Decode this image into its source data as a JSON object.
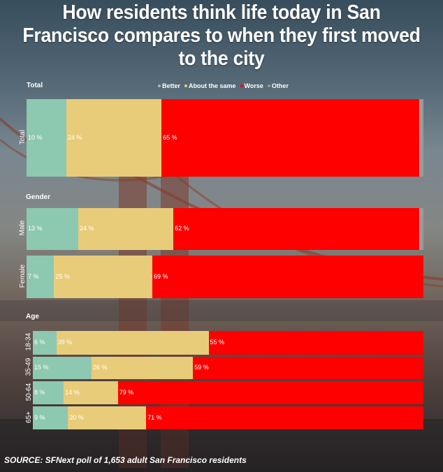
{
  "title": "How residents think life today in San Francisco compares to when they first moved to the city",
  "source": "SOURCE:  SFNext poll of 1,653 adult San Francisco residents",
  "legend": [
    {
      "label": "Better",
      "color": "#8dc8b1"
    },
    {
      "label": "About the same",
      "color": "#e9cc7a"
    },
    {
      "label": "Worse",
      "color": "#ff0000"
    },
    {
      "label": "Other",
      "color": "#9a9a9a"
    }
  ],
  "chart_data": {
    "type": "bar",
    "orientation": "horizontal",
    "stacked": true,
    "unit": "%",
    "series_names": [
      "Better",
      "About the same",
      "Worse",
      "Other"
    ],
    "groups": [
      {
        "label": "Total",
        "rows": [
          {
            "label": "Total",
            "values": [
              10,
              24,
              65,
              1
            ]
          }
        ]
      },
      {
        "label": "Gender",
        "rows": [
          {
            "label": "Male",
            "values": [
              13,
              24,
              62,
              1
            ]
          },
          {
            "label": "Female",
            "values": [
              7,
              25,
              69,
              0
            ]
          }
        ]
      },
      {
        "label": "Age",
        "rows": [
          {
            "label": "18-34",
            "values": [
              6,
              39,
              55,
              0
            ]
          },
          {
            "label": "35-49",
            "values": [
              15,
              26,
              59,
              0
            ]
          },
          {
            "label": "50-64",
            "values": [
              8,
              14,
              79,
              0
            ]
          },
          {
            "label": "65+",
            "values": [
              9,
              20,
              71,
              0
            ]
          }
        ]
      }
    ]
  }
}
